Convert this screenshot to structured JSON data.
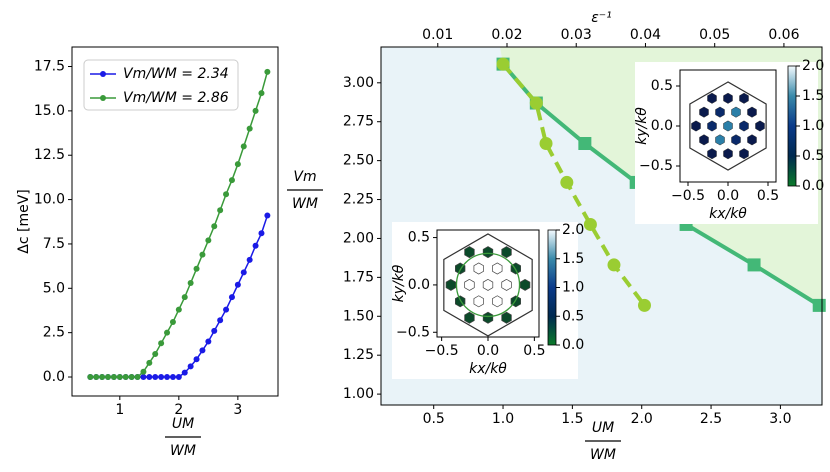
{
  "chart_data": [
    {
      "type": "line",
      "y_label": "Δc [meV]",
      "x_label": {
        "numerator": "UM",
        "denominator": "WM"
      },
      "x": [
        0.5,
        0.6,
        0.7,
        0.8,
        0.9,
        1.0,
        1.1,
        1.2,
        1.3,
        1.4,
        1.5,
        1.6,
        1.7,
        1.8,
        1.9,
        2.0,
        2.1,
        2.2,
        2.3,
        2.4,
        2.5,
        2.6,
        2.7,
        2.8,
        2.9,
        3.0,
        3.1,
        3.2,
        3.3,
        3.4,
        3.5
      ],
      "series": [
        {
          "name": "Vm/WM = 2.34",
          "color": "#1a1ae6",
          "values": [
            0,
            0,
            0,
            0,
            0,
            0,
            0,
            0,
            0,
            0,
            0,
            0,
            0,
            0,
            0,
            0,
            0.25,
            0.6,
            1.0,
            1.5,
            2.0,
            2.6,
            3.2,
            3.8,
            4.5,
            5.2,
            5.9,
            6.6,
            7.4,
            8.1,
            9.1
          ]
        },
        {
          "name": "Vm/WM = 2.86",
          "color": "#3a9a3a",
          "values": [
            0,
            0,
            0,
            0,
            0,
            0,
            0,
            0,
            0,
            0.3,
            0.8,
            1.3,
            1.9,
            2.5,
            3.1,
            3.8,
            4.5,
            5.3,
            6.1,
            6.9,
            7.7,
            8.5,
            9.4,
            10.3,
            11.1,
            12.0,
            13.0,
            14.0,
            15.0,
            16.0,
            17.2
          ]
        }
      ],
      "marker": "circle",
      "legend": "upper left",
      "xlim": [
        0.19,
        3.68
      ],
      "ylim": [
        -1.07,
        18.6
      ],
      "xticks": [
        1,
        2,
        3
      ],
      "yticks": [
        {
          "value": 0,
          "label": "0.0"
        },
        2.5,
        {
          "value": 5,
          "label": "5.0"
        },
        7.5,
        {
          "value": 10,
          "label": "10.0"
        },
        12.5,
        {
          "value": 15,
          "label": "15.0"
        },
        17.5
      ]
    },
    {
      "type": "phase",
      "top_label": "ε⁻¹",
      "y_label": {
        "numerator": "Vm",
        "denominator": "WM"
      },
      "x_label": {
        "numerator": "UM",
        "denominator": "WM"
      },
      "region_colors": {
        "above": "#e3f5d9",
        "below": "#e9f3f8"
      },
      "series": [
        {
          "color": "#43b877",
          "marker": "square",
          "dashed": false,
          "x": [
            1.0,
            1.24,
            1.59,
            1.96,
            2.32,
            2.81,
            3.28
          ],
          "values": [
            3.12,
            2.87,
            2.61,
            2.36,
            2.09,
            1.83,
            1.57
          ]
        },
        {
          "color": "#9acd32",
          "marker": "circle",
          "dashed": true,
          "x": [
            1.0,
            1.24,
            1.31,
            1.46,
            1.63,
            1.8,
            2.02
          ],
          "values": [
            3.12,
            2.87,
            2.61,
            2.36,
            2.09,
            1.83,
            1.57
          ]
        }
      ],
      "xlim": [
        0.12,
        3.3
      ],
      "ylim": [
        0.93,
        3.23
      ],
      "x2lim": [
        0.0018,
        0.0655
      ],
      "xticks": [
        0.5,
        {
          "value": 1,
          "label": "1.0"
        },
        1.5,
        {
          "value": 2,
          "label": "2.0"
        },
        2.5,
        {
          "value": 3,
          "label": "3.0"
        }
      ],
      "yticks": [
        {
          "value": 1,
          "label": "1.00"
        },
        1.25,
        {
          "value": 1.5,
          "label": "1.50"
        },
        1.75,
        {
          "value": 2,
          "label": "2.00"
        },
        2.25,
        {
          "value": 2.5,
          "label": "2.50"
        },
        2.75,
        {
          "value": 3,
          "label": "3.00"
        }
      ],
      "x2ticks": [
        0.01,
        0.02,
        0.03,
        0.04,
        0.05,
        0.06
      ],
      "insets": [
        {
          "x_label": "kx/kθ",
          "y_label": "ky/kθ",
          "xlim": [
            -0.6,
            0.6
          ],
          "ylim": [
            -0.7,
            0.7
          ],
          "xticks": [
            {
              "value": -0.5,
              "label": "−0.5"
            },
            {
              "value": 0,
              "label": "0.0"
            },
            0.5
          ],
          "yticks": [
            {
              "value": -0.5,
              "label": "−0.5"
            },
            {
              "value": 0,
              "label": "0.0"
            },
            0.5
          ],
          "colorbar": {
            "lim": [
              0,
              2
            ],
            "ticks": [
              {
                "value": 0,
                "label": "0.0"
              },
              0.5,
              {
                "value": 1,
                "label": "1.0"
              },
              1.5,
              {
                "value": 2,
                "label": "2.0"
              }
            ]
          }
        },
        {
          "x_label": "kx/kθ",
          "y_label": "ky/kθ",
          "xlim": [
            -0.55,
            0.55
          ],
          "ylim": [
            -0.55,
            0.58
          ],
          "xticks": [
            {
              "value": -0.5,
              "label": "−0.5"
            },
            {
              "value": 0,
              "label": "0.0"
            },
            0.5
          ],
          "yticks": [
            {
              "value": -0.5,
              "label": "−0.5"
            },
            {
              "value": 0,
              "label": "0.0"
            },
            0.5
          ],
          "colorbar": {
            "lim": [
              0,
              2
            ],
            "ticks": [
              {
                "value": 0,
                "label": "0.0"
              },
              0.5,
              {
                "value": 1,
                "label": "1.0"
              },
              1.5,
              {
                "value": 2,
                "label": "2.0"
              }
            ]
          }
        }
      ]
    }
  ]
}
